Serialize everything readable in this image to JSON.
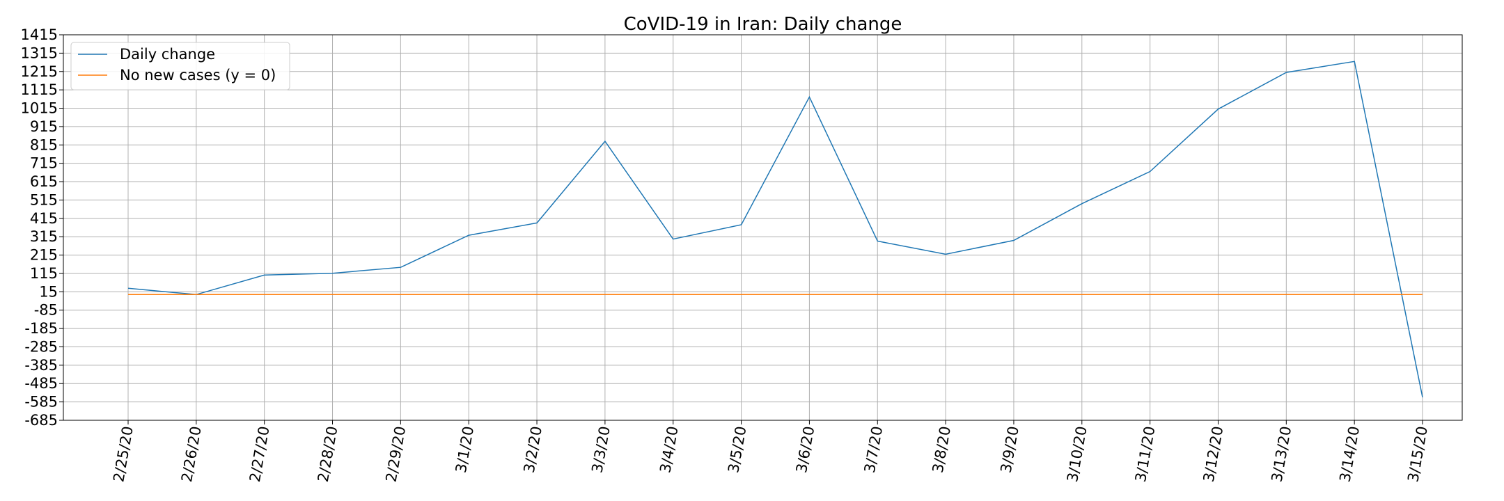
{
  "chart_data": {
    "type": "line",
    "title": "CoVID-19 in Iran: Daily change",
    "xlabel": "",
    "ylabel": "",
    "categories": [
      "2/25/20",
      "2/26/20",
      "2/27/20",
      "2/28/20",
      "2/29/20",
      "3/1/20",
      "3/2/20",
      "3/3/20",
      "3/4/20",
      "3/5/20",
      "3/6/20",
      "3/7/20",
      "3/8/20",
      "3/9/20",
      "3/10/20",
      "3/11/20",
      "3/12/20",
      "3/13/20",
      "3/14/20",
      "3/15/20"
    ],
    "series": [
      {
        "name": "Daily change",
        "color": "#1f77b4",
        "values": [
          34,
          0,
          106,
          116,
          148,
          323,
          390,
          835,
          302,
          380,
          1076,
          291,
          220,
          295,
          495,
          670,
          1010,
          1210,
          1270,
          -560
        ]
      },
      {
        "name": "No new cases (y = 0)",
        "color": "#ff7f0e",
        "values": [
          0,
          0,
          0,
          0,
          0,
          0,
          0,
          0,
          0,
          0,
          0,
          0,
          0,
          0,
          0,
          0,
          0,
          0,
          0,
          0
        ]
      }
    ],
    "yticks": [
      1415,
      1315,
      1215,
      1115,
      1015,
      915,
      815,
      715,
      615,
      515,
      415,
      315,
      215,
      115,
      15,
      -85,
      -185,
      -285,
      -385,
      -485,
      -585,
      -685
    ],
    "ylim": [
      -685,
      1415
    ],
    "grid": true,
    "legend_position": "top-left"
  }
}
